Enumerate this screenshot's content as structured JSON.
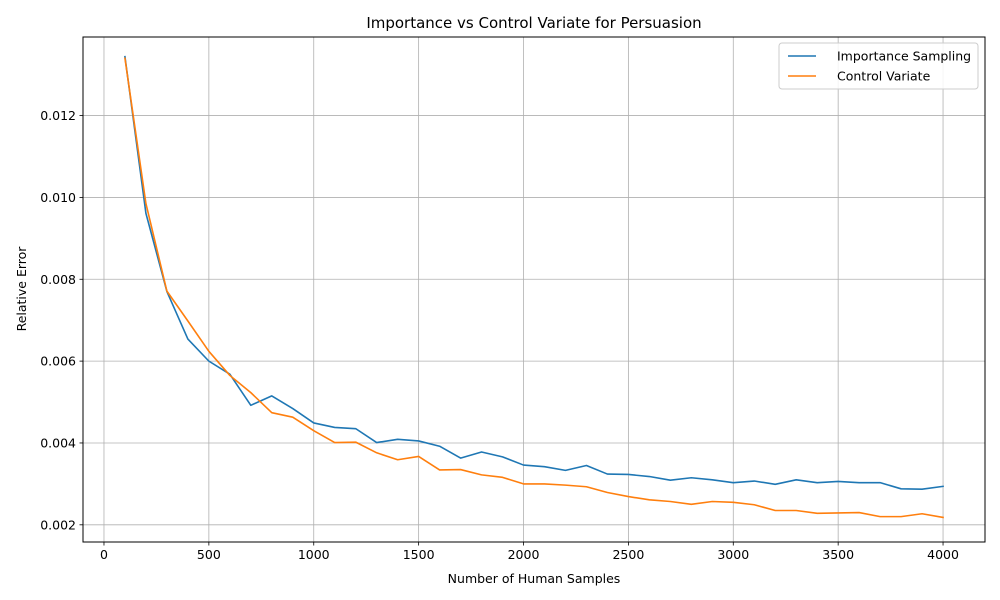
{
  "chart_data": {
    "type": "line",
    "title": "Importance vs Control Variate for Persuasion",
    "xlabel": "Number of Human Samples",
    "ylabel": "Relative Error",
    "xlim": [
      -100,
      4200
    ],
    "ylim": [
      0.00158,
      0.01392
    ],
    "xticks": [
      0,
      500,
      1000,
      1500,
      2000,
      2500,
      3000,
      3500,
      4000
    ],
    "yticks": [
      0.002,
      0.004,
      0.006,
      0.008,
      0.01,
      0.012
    ],
    "xtick_labels": [
      "0",
      "500",
      "1000",
      "1500",
      "2000",
      "2500",
      "3000",
      "3500",
      "4000"
    ],
    "ytick_labels": [
      "0.002",
      "0.004",
      "0.006",
      "0.008",
      "0.010",
      "0.012"
    ],
    "grid": true,
    "legend_position": "top-right",
    "x": [
      100,
      200,
      300,
      400,
      500,
      600,
      700,
      800,
      900,
      1000,
      1100,
      1200,
      1300,
      1400,
      1500,
      1600,
      1700,
      1800,
      1900,
      2000,
      2100,
      2200,
      2300,
      2400,
      2500,
      2600,
      2700,
      2800,
      2900,
      3000,
      3100,
      3200,
      3300,
      3400,
      3500,
      3600,
      3700,
      3800,
      3900,
      4000
    ],
    "series": [
      {
        "name": "Importance Sampling",
        "color": "#1f77b4",
        "values": [
          0.01344,
          0.00961,
          0.0077,
          0.00654,
          0.006,
          0.00568,
          0.00492,
          0.00515,
          0.00484,
          0.00449,
          0.00438,
          0.00435,
          0.00401,
          0.00409,
          0.00405,
          0.00392,
          0.00363,
          0.00378,
          0.00366,
          0.00346,
          0.00342,
          0.00333,
          0.00345,
          0.00324,
          0.00323,
          0.00318,
          0.00309,
          0.00315,
          0.0031,
          0.00303,
          0.00307,
          0.00299,
          0.0031,
          0.00303,
          0.00306,
          0.00303,
          0.00303,
          0.00288,
          0.00287,
          0.00294
        ]
      },
      {
        "name": "Control Variate",
        "color": "#ff7f0e",
        "values": [
          0.0134,
          0.00985,
          0.00771,
          0.00698,
          0.00624,
          0.00565,
          0.00523,
          0.00474,
          0.00463,
          0.0043,
          0.00401,
          0.00402,
          0.00376,
          0.00359,
          0.00367,
          0.00334,
          0.00335,
          0.00322,
          0.00316,
          0.003,
          0.003,
          0.00297,
          0.00293,
          0.00279,
          0.00269,
          0.00261,
          0.00257,
          0.0025,
          0.00257,
          0.00255,
          0.00249,
          0.00235,
          0.00235,
          0.00228,
          0.00229,
          0.0023,
          0.0022,
          0.0022,
          0.00227,
          0.00218
        ]
      }
    ]
  }
}
